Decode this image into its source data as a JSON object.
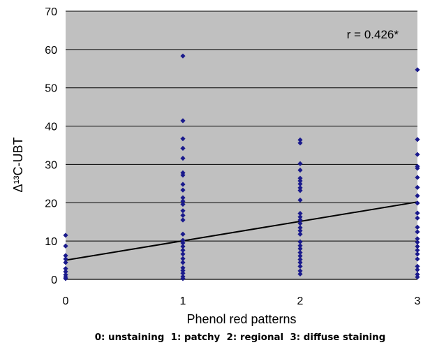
{
  "chart_data": {
    "type": "scatter",
    "title": "",
    "xlabel": "Phenol red patterns",
    "ylabel": "Δ¹³C-UBT",
    "xlim": [
      0,
      3
    ],
    "ylim": [
      0,
      70
    ],
    "x_ticks": [
      "0",
      "1",
      "2",
      "3"
    ],
    "y_ticks": [
      "0",
      "10",
      "20",
      "30",
      "40",
      "50",
      "60",
      "70"
    ],
    "grid": true,
    "legend": "none",
    "colors": {
      "plot_background": "#c0c0c0",
      "points": "#1a1a8c",
      "gridlines": "#000000",
      "trendline": "#000000"
    },
    "annotation": "r = 0.426*",
    "footnote": "0: unstaining  1: patchy  2: regional  3: diffuse staining",
    "trendline": {
      "x": [
        0,
        3
      ],
      "y": [
        5.0,
        20.2
      ]
    },
    "points": [
      {
        "x": 0,
        "y": 11.5
      },
      {
        "x": 0,
        "y": 8.7
      },
      {
        "x": 0,
        "y": 6.2
      },
      {
        "x": 0,
        "y": 5.3
      },
      {
        "x": 0,
        "y": 4.4
      },
      {
        "x": 0,
        "y": 2.8
      },
      {
        "x": 0,
        "y": 2.0
      },
      {
        "x": 0,
        "y": 1.2
      },
      {
        "x": 0,
        "y": 0.6
      },
      {
        "x": 0,
        "y": 0.2
      },
      {
        "x": 1,
        "y": 58.3
      },
      {
        "x": 1,
        "y": 41.4
      },
      {
        "x": 1,
        "y": 36.7
      },
      {
        "x": 1,
        "y": 34.2
      },
      {
        "x": 1,
        "y": 31.6
      },
      {
        "x": 1,
        "y": 27.8
      },
      {
        "x": 1,
        "y": 27.2
      },
      {
        "x": 1,
        "y": 24.8
      },
      {
        "x": 1,
        "y": 23.3
      },
      {
        "x": 1,
        "y": 21.3
      },
      {
        "x": 1,
        "y": 20.4
      },
      {
        "x": 1,
        "y": 19.6
      },
      {
        "x": 1,
        "y": 17.9
      },
      {
        "x": 1,
        "y": 16.7
      },
      {
        "x": 1,
        "y": 15.5
      },
      {
        "x": 1,
        "y": 11.8
      },
      {
        "x": 1,
        "y": 10.2
      },
      {
        "x": 1,
        "y": 9.5
      },
      {
        "x": 1,
        "y": 8.6
      },
      {
        "x": 1,
        "y": 7.6
      },
      {
        "x": 1,
        "y": 6.6
      },
      {
        "x": 1,
        "y": 5.4
      },
      {
        "x": 1,
        "y": 4.4
      },
      {
        "x": 1,
        "y": 3.0
      },
      {
        "x": 1,
        "y": 2.3
      },
      {
        "x": 1,
        "y": 1.6
      },
      {
        "x": 1,
        "y": 0.7
      },
      {
        "x": 1,
        "y": 0.2
      },
      {
        "x": 2,
        "y": 36.4
      },
      {
        "x": 2,
        "y": 35.6
      },
      {
        "x": 2,
        "y": 30.2
      },
      {
        "x": 2,
        "y": 28.5
      },
      {
        "x": 2,
        "y": 26.4
      },
      {
        "x": 2,
        "y": 25.7
      },
      {
        "x": 2,
        "y": 24.9
      },
      {
        "x": 2,
        "y": 23.9
      },
      {
        "x": 2,
        "y": 23.2
      },
      {
        "x": 2,
        "y": 20.7
      },
      {
        "x": 2,
        "y": 17.2
      },
      {
        "x": 2,
        "y": 16.3
      },
      {
        "x": 2,
        "y": 15.5
      },
      {
        "x": 2,
        "y": 14.6
      },
      {
        "x": 2,
        "y": 13.5
      },
      {
        "x": 2,
        "y": 12.7
      },
      {
        "x": 2,
        "y": 11.8
      },
      {
        "x": 2,
        "y": 9.8
      },
      {
        "x": 2,
        "y": 8.8
      },
      {
        "x": 2,
        "y": 8.0
      },
      {
        "x": 2,
        "y": 7.0
      },
      {
        "x": 2,
        "y": 6.1
      },
      {
        "x": 2,
        "y": 5.2
      },
      {
        "x": 2,
        "y": 4.4
      },
      {
        "x": 2,
        "y": 3.4
      },
      {
        "x": 2,
        "y": 2.2
      },
      {
        "x": 2,
        "y": 1.4
      },
      {
        "x": 3,
        "y": 54.7
      },
      {
        "x": 3,
        "y": 36.5
      },
      {
        "x": 3,
        "y": 32.6
      },
      {
        "x": 3,
        "y": 29.5
      },
      {
        "x": 3,
        "y": 29.0
      },
      {
        "x": 3,
        "y": 26.6
      },
      {
        "x": 3,
        "y": 24.0
      },
      {
        "x": 3,
        "y": 21.8
      },
      {
        "x": 3,
        "y": 19.9
      },
      {
        "x": 3,
        "y": 17.3
      },
      {
        "x": 3,
        "y": 16.0
      },
      {
        "x": 3,
        "y": 13.6
      },
      {
        "x": 3,
        "y": 12.4
      },
      {
        "x": 3,
        "y": 10.6
      },
      {
        "x": 3,
        "y": 9.7
      },
      {
        "x": 3,
        "y": 8.6
      },
      {
        "x": 3,
        "y": 7.6
      },
      {
        "x": 3,
        "y": 6.6
      },
      {
        "x": 3,
        "y": 5.3
      },
      {
        "x": 3,
        "y": 3.4
      },
      {
        "x": 3,
        "y": 2.5
      },
      {
        "x": 3,
        "y": 1.3
      },
      {
        "x": 3,
        "y": 0.6
      }
    ]
  }
}
